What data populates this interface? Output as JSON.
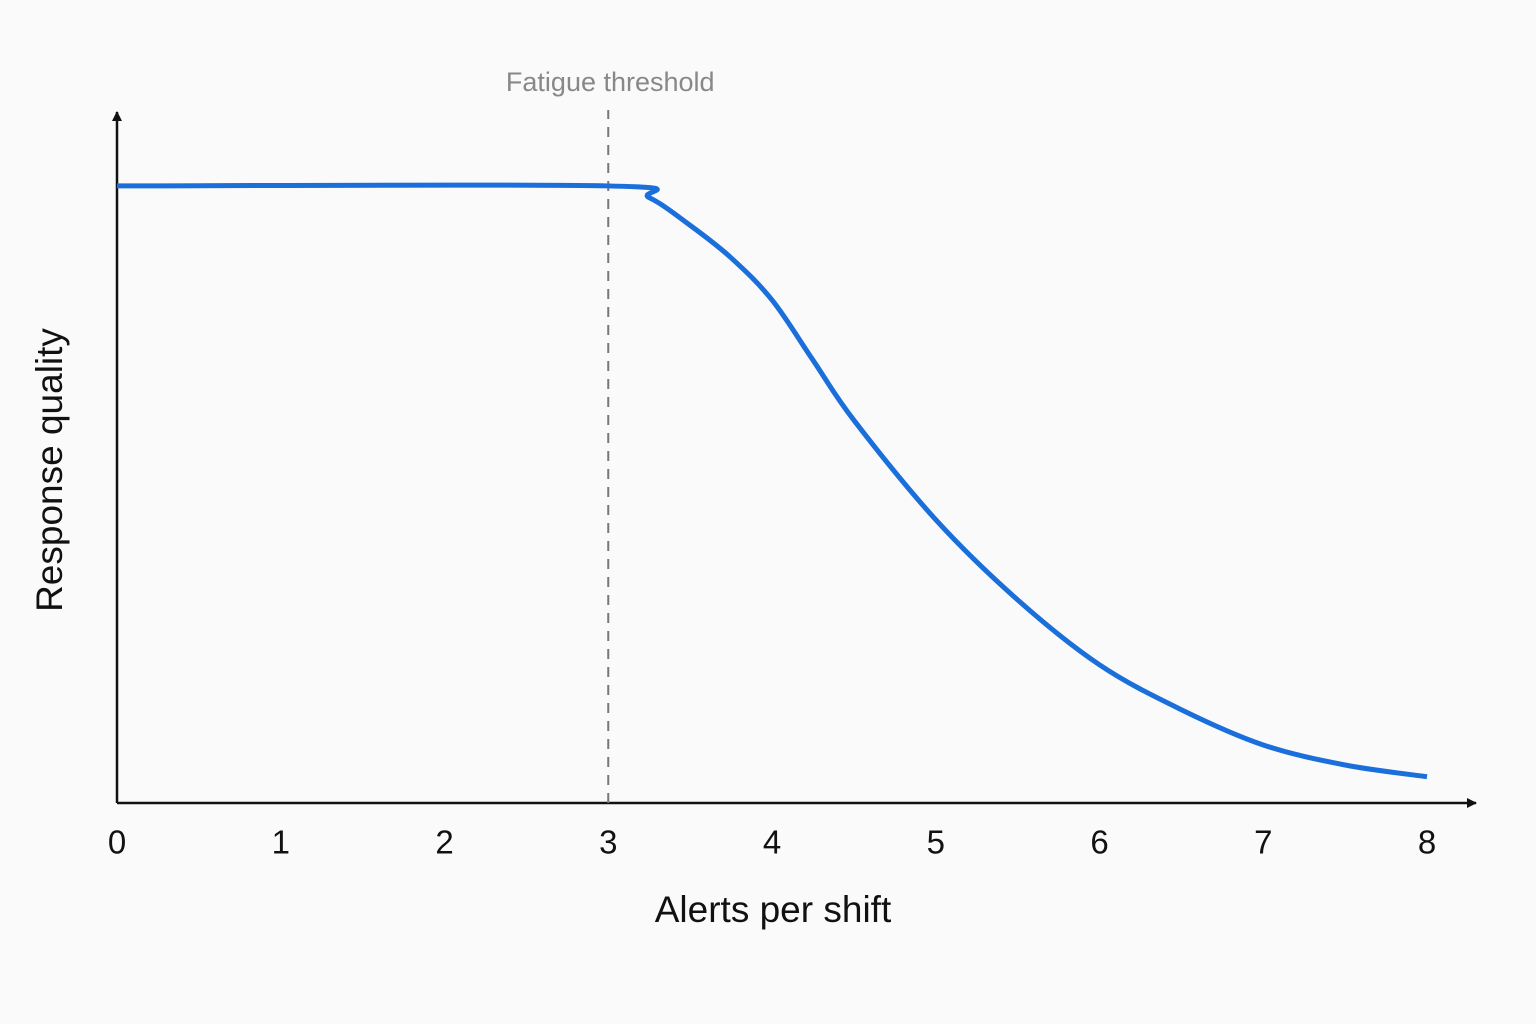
{
  "chart_data": {
    "type": "line",
    "x_label": "Alerts per shift",
    "y_label": "Response quality",
    "x": [
      0,
      3,
      3.25,
      3.5,
      3.75,
      4,
      4.25,
      4.5,
      5,
      5.5,
      6,
      6.5,
      7,
      7.5,
      8
    ],
    "series": [
      {
        "color": "#1a6fdb",
        "values": [
          0.893,
          0.893,
          0.876,
          0.836,
          0.789,
          0.728,
          0.641,
          0.554,
          0.41,
          0.294,
          0.2,
          0.135,
          0.084,
          0.055,
          0.038
        ]
      }
    ],
    "xlim": [
      0,
      8
    ],
    "xticks": [
      0,
      1,
      2,
      3,
      4,
      5,
      6,
      7,
      8
    ],
    "ylim": [
      0,
      1
    ],
    "threshold": {
      "x": 3,
      "label": "Fatigue threshold"
    }
  }
}
